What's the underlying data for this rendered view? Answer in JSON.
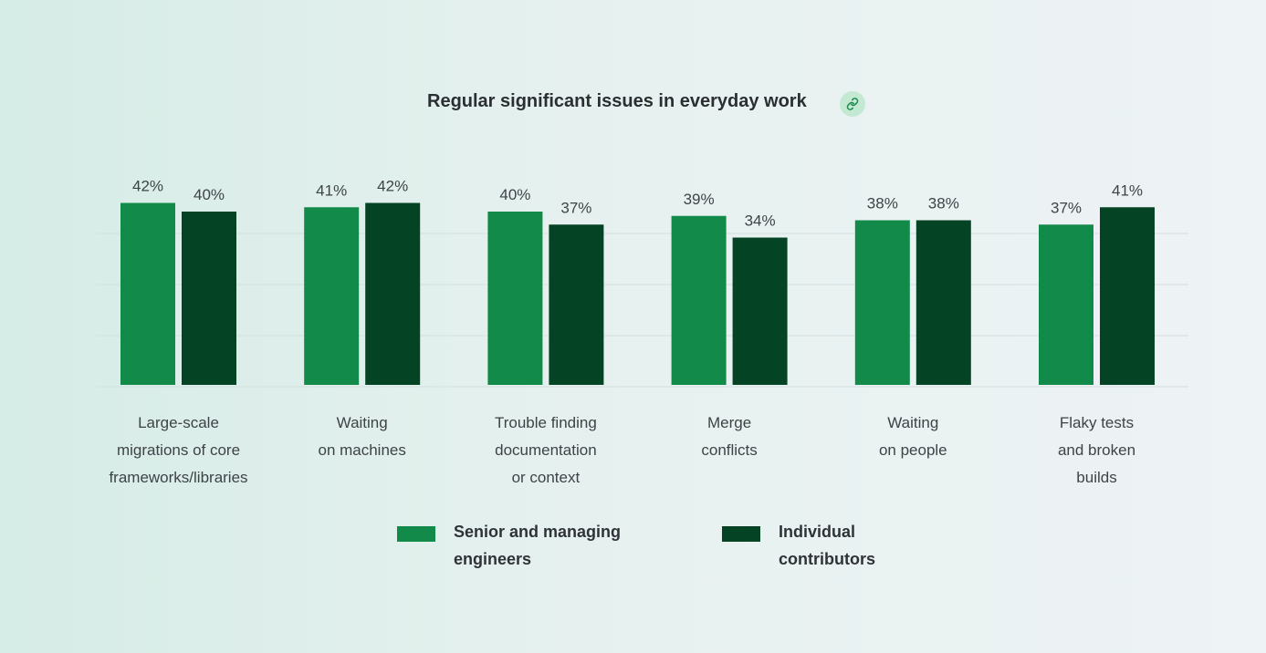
{
  "chart_data": {
    "type": "bar",
    "title": "Regular significant issues in everyday work",
    "xlabel": "",
    "ylabel": "",
    "ylim": [
      0,
      45
    ],
    "grid": true,
    "legend_position": "bottom",
    "categories": [
      "Large-scale\nmigrations of core\nframeworks/libraries",
      "Waiting\non machines",
      "Trouble finding\ndocumentation\nor context",
      "Merge\nconflicts",
      "Waiting\non people",
      "Flaky tests\nand broken\nbuilds"
    ],
    "series": [
      {
        "name": "Senior and managing engineers",
        "color": "#128a4a",
        "values": [
          42,
          41,
          40,
          39,
          38,
          37
        ]
      },
      {
        "name": "Individual contributors",
        "color": "#054325",
        "values": [
          40,
          42,
          37,
          34,
          38,
          41
        ]
      }
    ],
    "value_suffix": "%"
  },
  "header": {
    "title": "Regular significant issues in everyday work",
    "link_icon": "link-icon"
  },
  "legend": {
    "items": [
      {
        "label": "Senior and managing\nengineers",
        "color": "#128a4a"
      },
      {
        "label": "Individual\ncontributors",
        "color": "#054325"
      }
    ]
  }
}
